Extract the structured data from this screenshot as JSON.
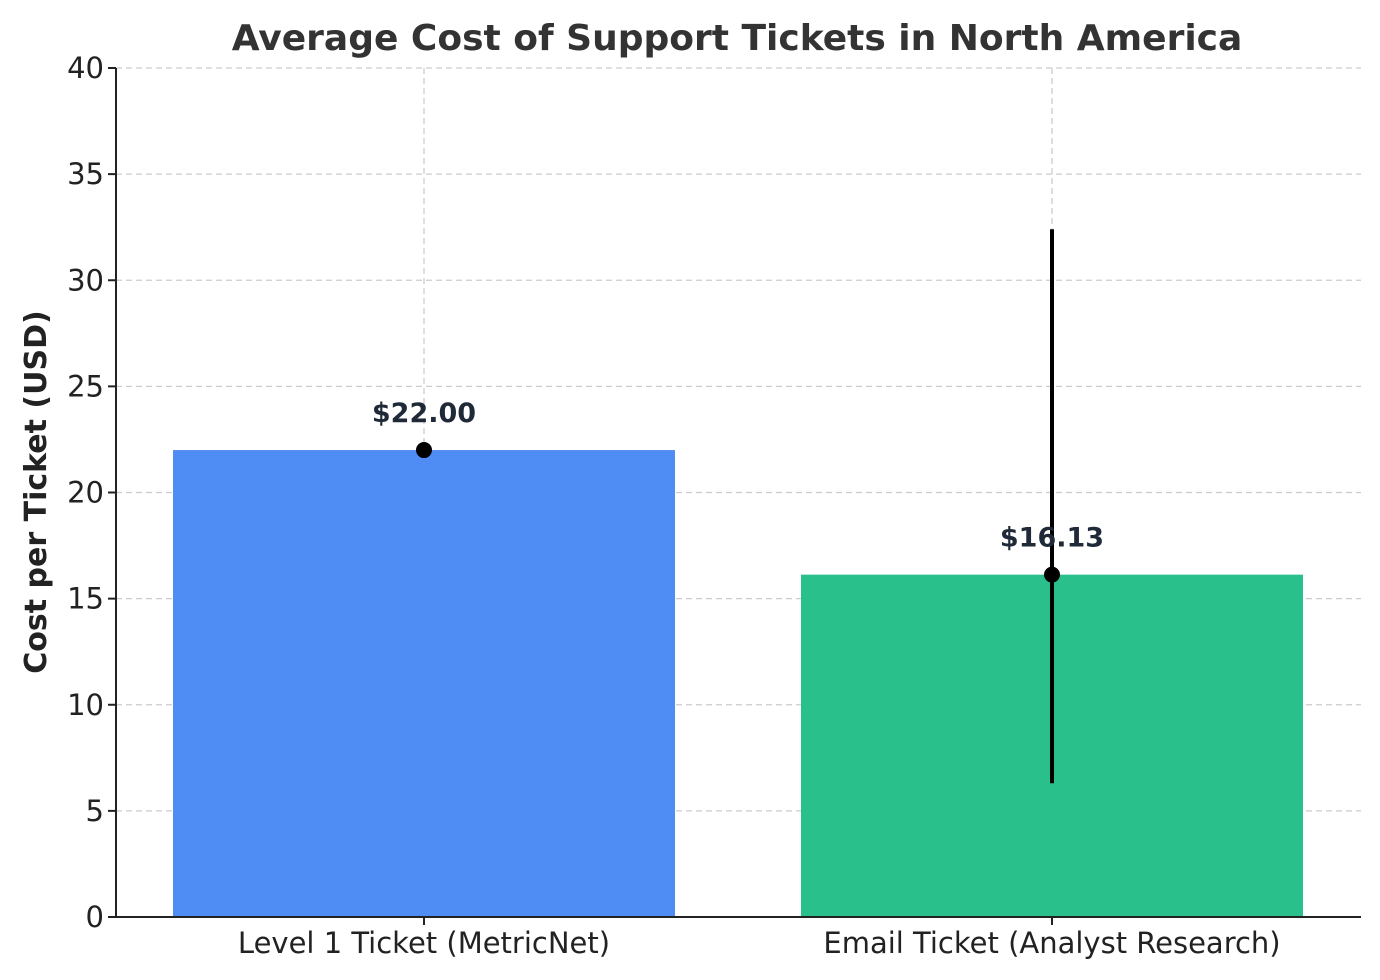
{
  "chart_data": {
    "type": "bar",
    "title": "Average Cost of Support Tickets in North America",
    "xlabel": "",
    "ylabel": "Cost per Ticket (USD)",
    "ylim": [
      0,
      40
    ],
    "yticks": [
      0,
      5,
      10,
      15,
      20,
      25,
      30,
      35,
      40
    ],
    "categories": [
      "Level 1 Ticket (MetricNet)",
      "Email Ticket (Analyst Research)"
    ],
    "values": [
      22.0,
      16.13
    ],
    "data_labels": [
      "$22.00",
      "$16.13"
    ],
    "error_bars": [
      null,
      {
        "low": 6.3,
        "high": 32.4
      }
    ],
    "colors": [
      "#4f8df5",
      "#29c08b"
    ],
    "grid": true
  }
}
